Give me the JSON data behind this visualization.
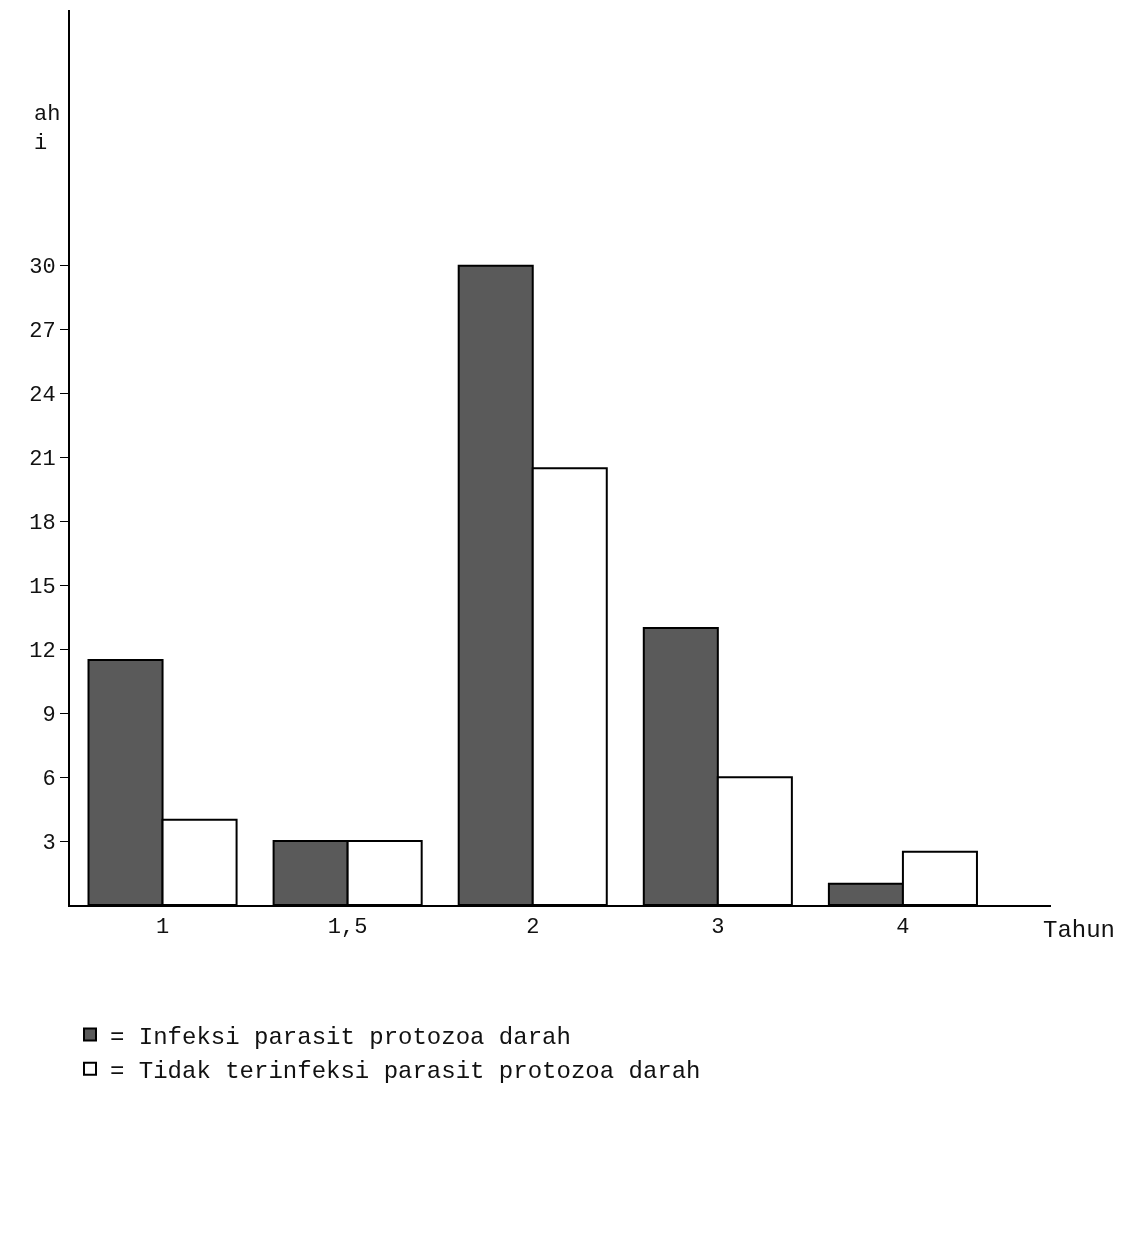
{
  "chart_data": {
    "type": "bar",
    "ylabel": "ah\ni",
    "xlabel": "Tahun",
    "categories": [
      "1",
      "1,5",
      "2",
      "3",
      "4"
    ],
    "series": [
      {
        "name": "= Infeksi parasit protozoa darah",
        "color": "#5a5a5a",
        "values": [
          11.5,
          3,
          30,
          13,
          1
        ]
      },
      {
        "name": "= Tidak terinfeksi parasit protozoa darah",
        "color": "#ffffff",
        "values": [
          4,
          3,
          20.5,
          6,
          2.5
        ]
      }
    ],
    "ylim": [
      0,
      42
    ],
    "yticks": [
      3,
      6,
      9,
      12,
      15,
      18,
      21,
      24,
      27,
      30
    ],
    "legend": "bottom"
  }
}
